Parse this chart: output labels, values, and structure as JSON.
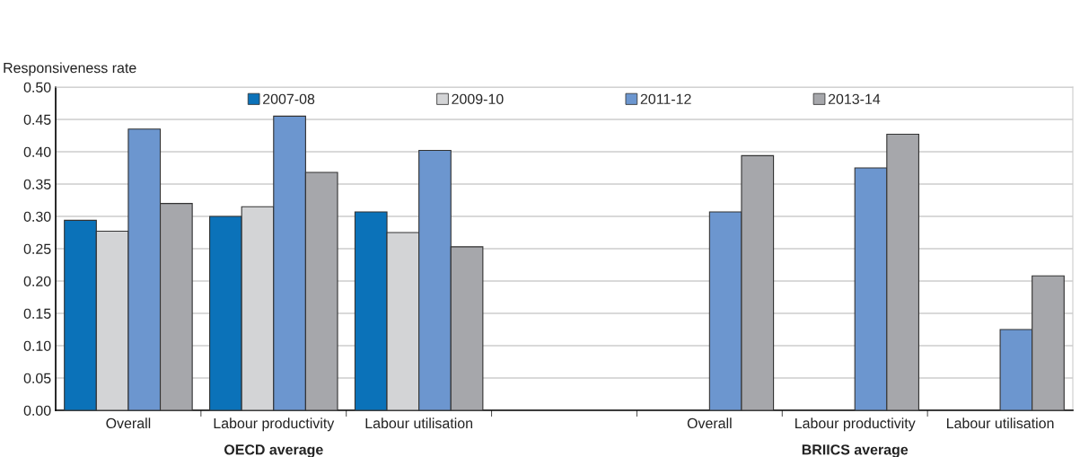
{
  "chart_data": {
    "type": "bar",
    "ylabel": "Responsiveness rate",
    "categories": [
      "Overall",
      "Labour productivity",
      "Labour utilisation",
      null,
      "Overall",
      "Labour productivity",
      "Labour utilisation"
    ],
    "series": [
      {
        "name": "2007-08",
        "color": "#0b72b9",
        "values": [
          0.294,
          0.3,
          0.307,
          null,
          null,
          null,
          null
        ]
      },
      {
        "name": "2009-10",
        "color": "#d3d4d6",
        "values": [
          0.277,
          0.315,
          0.275,
          null,
          null,
          null,
          null
        ]
      },
      {
        "name": "2011-12",
        "color": "#6c96cf",
        "values": [
          0.435,
          0.455,
          0.402,
          null,
          0.307,
          0.375,
          0.125
        ]
      },
      {
        "name": "2013-14",
        "color": "#a6a7ab",
        "values": [
          0.32,
          0.368,
          0.253,
          null,
          0.394,
          0.427,
          0.208
        ]
      }
    ],
    "annotations": [
      "OECD average",
      "BRIICS average"
    ],
    "ylim": [
      0,
      0.5
    ],
    "yticks": [
      {
        "value": 0,
        "label": "0.00"
      },
      {
        "value": 0.05,
        "label": "0.05"
      },
      {
        "value": 0.1,
        "label": "0.10"
      },
      {
        "value": 0.15,
        "label": "0.15"
      },
      {
        "value": 0.2,
        "label": "0.20"
      },
      {
        "value": 0.25,
        "label": "0.25"
      },
      {
        "value": 0.3,
        "label": "0.30"
      },
      {
        "value": 0.35,
        "label": "0.35"
      },
      {
        "value": 0.4,
        "label": "0.40"
      },
      {
        "value": 0.45,
        "label": "0.45"
      },
      {
        "value": 0.5,
        "label": "0.50"
      }
    ],
    "grid": "y",
    "legend": "top"
  }
}
